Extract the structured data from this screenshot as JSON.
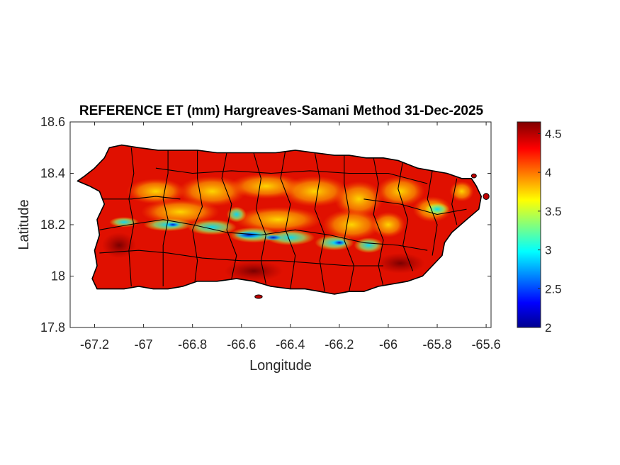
{
  "chart_data": {
    "type": "heatmap",
    "title": "REFERENCE ET (mm) Hargreaves-Samani Method  31-Dec-2025",
    "xlabel": "Longitude",
    "ylabel": "Latitude",
    "xlim": [
      -67.3,
      -65.58
    ],
    "ylim": [
      17.8,
      18.6
    ],
    "x_ticks": [
      {
        "value": -67.2,
        "label": "-67.2"
      },
      {
        "value": -67.0,
        "label": "-67"
      },
      {
        "value": -66.8,
        "label": "-66.8"
      },
      {
        "value": -66.6,
        "label": "-66.6"
      },
      {
        "value": -66.4,
        "label": "-66.4"
      },
      {
        "value": -66.2,
        "label": "-66.2"
      },
      {
        "value": -66.0,
        "label": "-66"
      },
      {
        "value": -65.8,
        "label": "-65.8"
      },
      {
        "value": -65.6,
        "label": "-65.6"
      }
    ],
    "y_ticks": [
      {
        "value": 17.8,
        "label": "17.8"
      },
      {
        "value": 18.0,
        "label": "18"
      },
      {
        "value": 18.2,
        "label": "18.2"
      },
      {
        "value": 18.4,
        "label": "18.4"
      },
      {
        "value": 18.6,
        "label": "18.6"
      }
    ],
    "colorbar": {
      "range": [
        2.0,
        4.65
      ],
      "ticks": [
        {
          "value": 2.0,
          "label": "2"
        },
        {
          "value": 2.5,
          "label": "2.5"
        },
        {
          "value": 3.0,
          "label": "3"
        },
        {
          "value": 3.5,
          "label": "3.5"
        },
        {
          "value": 4.0,
          "label": "4"
        },
        {
          "value": 4.5,
          "label": "4.5"
        }
      ],
      "colormap": "jet"
    },
    "grid": false,
    "colors": {
      "high": "#b00000",
      "mid": "#ffd400",
      "low": "#00008f",
      "boundary": "#000000"
    }
  }
}
